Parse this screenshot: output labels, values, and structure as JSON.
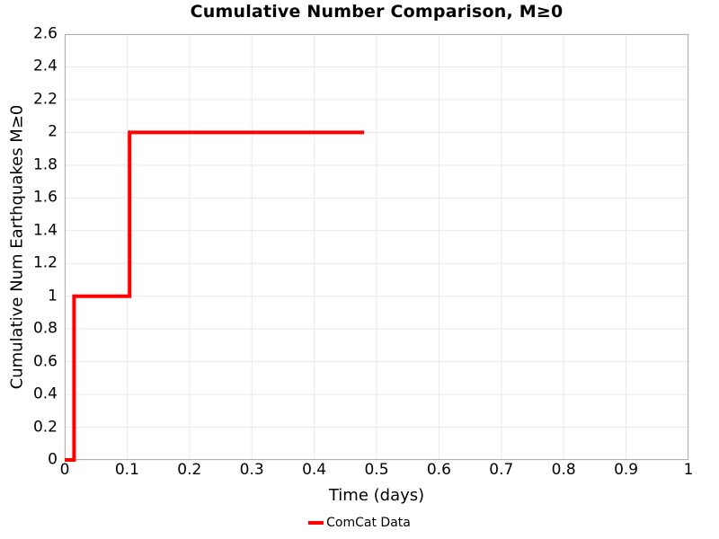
{
  "chart_data": {
    "type": "line",
    "subtype": "step",
    "title": "Cumulative Number Comparison, M≥0",
    "xlabel": "Time (days)",
    "ylabel": "Cumulative Num Earthquakes M≥0",
    "xlim": [
      0,
      1
    ],
    "ylim": [
      0,
      2.6
    ],
    "grid": true,
    "x_ticks": {
      "values": [
        0,
        0.1,
        0.2,
        0.3,
        0.4,
        0.5,
        0.6,
        0.7,
        0.8,
        0.9,
        1
      ],
      "labels": [
        "0",
        "0.1",
        "0.2",
        "0.3",
        "0.4",
        "0.5",
        "0.6",
        "0.7",
        "0.8",
        "0.9",
        "1"
      ]
    },
    "y_ticks": {
      "values": [
        0,
        0.2,
        0.4,
        0.6,
        0.8,
        1,
        1.2,
        1.4,
        1.6,
        1.8,
        2,
        2.2,
        2.4,
        2.6
      ],
      "labels": [
        "0",
        "0.2",
        "0.4",
        "0.6",
        "0.8",
        "1",
        "1.2",
        "1.4",
        "1.6",
        "1.8",
        "2",
        "2.2",
        "2.4",
        "2.6"
      ]
    },
    "colors": {
      "line": "#ff0000",
      "grid": "#e9e9e9",
      "frame": "#b0b0b0",
      "text": "#000000",
      "background": "#ffffff"
    },
    "legend": {
      "position": "bottom-center",
      "entries": [
        {
          "label": "ComCat Data",
          "color": "#ff0000"
        }
      ]
    },
    "series": [
      {
        "name": "ComCat Data",
        "color": "#ff0000",
        "line_width": 4,
        "points": [
          [
            0,
            0
          ],
          [
            0.015,
            0
          ],
          [
            0.015,
            1
          ],
          [
            0.104,
            1
          ],
          [
            0.104,
            2
          ],
          [
            0.48,
            2
          ]
        ]
      }
    ]
  }
}
